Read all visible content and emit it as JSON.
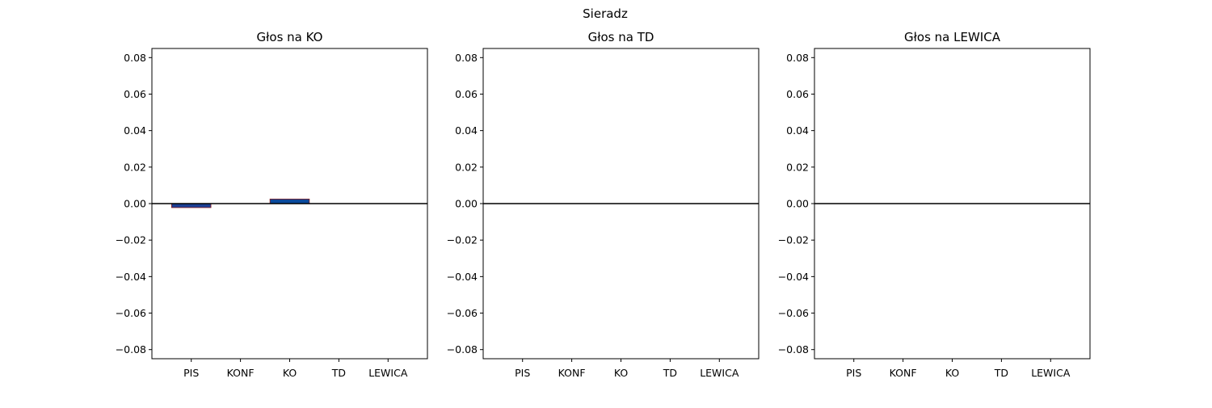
{
  "figure": {
    "suptitle": "Sieradz"
  },
  "chart_data": [
    {
      "type": "bar",
      "title": "Głos na KO",
      "categories": [
        "PIS",
        "KONF",
        "KO",
        "TD",
        "LEWICA"
      ],
      "values": [
        -0.0022,
        0,
        0.0025,
        0,
        0
      ],
      "ylim": [
        -0.085,
        0.085
      ],
      "yticks": [
        -0.08,
        -0.06,
        -0.04,
        -0.02,
        0.0,
        0.02,
        0.04,
        0.06,
        0.08
      ],
      "ytick_labels": [
        "−0.08",
        "−0.06",
        "−0.04",
        "−0.02",
        "0.00",
        "0.02",
        "0.04",
        "0.06",
        "0.08"
      ],
      "xlabel": "",
      "ylabel": "",
      "grid": false,
      "bar_colors": [
        "#1c3f94",
        "#1c3f94",
        "#0b4a9c",
        "#1c3f94",
        "#1c3f94"
      ],
      "bar_edge_color": "#8b1a1a",
      "zero_line": true
    },
    {
      "type": "bar",
      "title": "Głos na TD",
      "categories": [
        "PIS",
        "KONF",
        "KO",
        "TD",
        "LEWICA"
      ],
      "values": [
        0,
        0,
        0,
        0,
        0
      ],
      "ylim": [
        -0.085,
        0.085
      ],
      "yticks": [
        -0.08,
        -0.06,
        -0.04,
        -0.02,
        0.0,
        0.02,
        0.04,
        0.06,
        0.08
      ],
      "ytick_labels": [
        "−0.08",
        "−0.06",
        "−0.04",
        "−0.02",
        "0.00",
        "0.02",
        "0.04",
        "0.06",
        "0.08"
      ],
      "xlabel": "",
      "ylabel": "",
      "grid": false,
      "bar_colors": [
        "#1c3f94",
        "#1c3f94",
        "#0b4a9c",
        "#1c3f94",
        "#1c3f94"
      ],
      "bar_edge_color": "#8b1a1a",
      "zero_line": true
    },
    {
      "type": "bar",
      "title": "Głos na LEWICA",
      "categories": [
        "PIS",
        "KONF",
        "KO",
        "TD",
        "LEWICA"
      ],
      "values": [
        0,
        0,
        0,
        0,
        0
      ],
      "ylim": [
        -0.085,
        0.085
      ],
      "yticks": [
        -0.08,
        -0.06,
        -0.04,
        -0.02,
        0.0,
        0.02,
        0.04,
        0.06,
        0.08
      ],
      "ytick_labels": [
        "−0.08",
        "−0.06",
        "−0.04",
        "−0.02",
        "0.00",
        "0.02",
        "0.04",
        "0.06",
        "0.08"
      ],
      "xlabel": "",
      "ylabel": "",
      "grid": false,
      "bar_colors": [
        "#1c3f94",
        "#1c3f94",
        "#0b4a9c",
        "#1c3f94",
        "#1c3f94"
      ],
      "bar_edge_color": "#8b1a1a",
      "zero_line": true
    }
  ]
}
